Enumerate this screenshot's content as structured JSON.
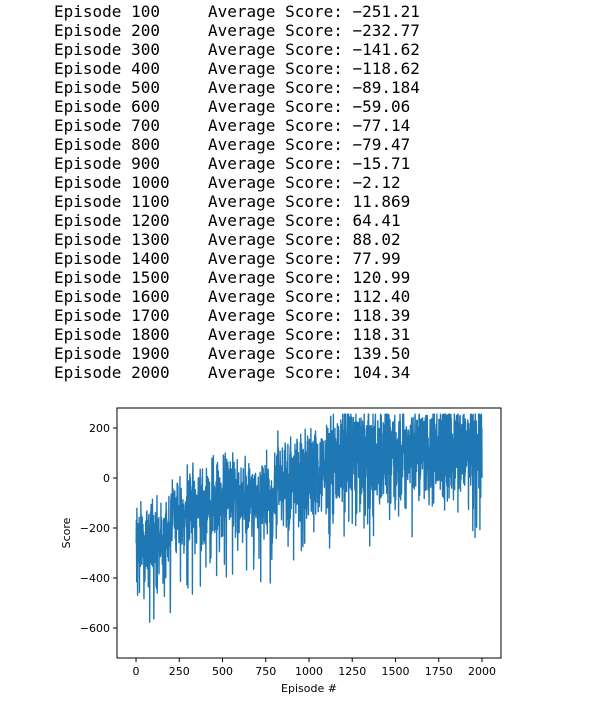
{
  "log": [
    {
      "episode": "Episode 100",
      "score": "Average Score: −251.21"
    },
    {
      "episode": "Episode 200",
      "score": "Average Score: −232.77"
    },
    {
      "episode": "Episode 300",
      "score": "Average Score: −141.62"
    },
    {
      "episode": "Episode 400",
      "score": "Average Score: −118.62"
    },
    {
      "episode": "Episode 500",
      "score": "Average Score: −89.184"
    },
    {
      "episode": "Episode 600",
      "score": "Average Score: −59.06"
    },
    {
      "episode": "Episode 700",
      "score": "Average Score: −77.14"
    },
    {
      "episode": "Episode 800",
      "score": "Average Score: −79.47"
    },
    {
      "episode": "Episode 900",
      "score": "Average Score: −15.71"
    },
    {
      "episode": "Episode 1000",
      "score": "Average Score: −2.12"
    },
    {
      "episode": "Episode 1100",
      "score": "Average Score: 11.869"
    },
    {
      "episode": "Episode 1200",
      "score": "Average Score: 64.41"
    },
    {
      "episode": "Episode 1300",
      "score": "Average Score: 88.02"
    },
    {
      "episode": "Episode 1400",
      "score": "Average Score: 77.99"
    },
    {
      "episode": "Episode 1500",
      "score": "Average Score: 120.99"
    },
    {
      "episode": "Episode 1600",
      "score": "Average Score: 112.40"
    },
    {
      "episode": "Episode 1700",
      "score": "Average Score: 118.39"
    },
    {
      "episode": "Episode 1800",
      "score": "Average Score: 118.31"
    },
    {
      "episode": "Episode 1900",
      "score": "Average Score: 139.50"
    },
    {
      "episode": "Episode 2000",
      "score": "Average Score: 104.34"
    }
  ],
  "chart_data": {
    "type": "line",
    "xlabel": "Episode #",
    "ylabel": "Score",
    "xlim": [
      -110,
      2110
    ],
    "ylim": [
      -720,
      280
    ],
    "xticks": [
      0,
      250,
      500,
      750,
      1000,
      1250,
      1500,
      1750,
      2000
    ],
    "xtick_labels": [
      "0",
      "250",
      "500",
      "750",
      "1000",
      "1250",
      "1500",
      "1750",
      "2000"
    ],
    "yticks": [
      200,
      0,
      -200,
      -400,
      -600
    ],
    "ytick_labels": [
      "200",
      "0",
      "−200",
      "−400",
      "−600"
    ],
    "grid": false,
    "line_color": "#1f77b4",
    "series": [
      {
        "episode_range": [
          1,
          2000
        ],
        "window_means": [
          -251.21,
          -232.77,
          -141.62,
          -118.62,
          -89.184,
          -59.06,
          -77.14,
          -79.47,
          -15.71,
          -2.12,
          11.869,
          64.41,
          88.02,
          77.99,
          120.99,
          112.4,
          118.39,
          118.31,
          139.5,
          104.34
        ],
        "window_size": 100
      }
    ]
  }
}
